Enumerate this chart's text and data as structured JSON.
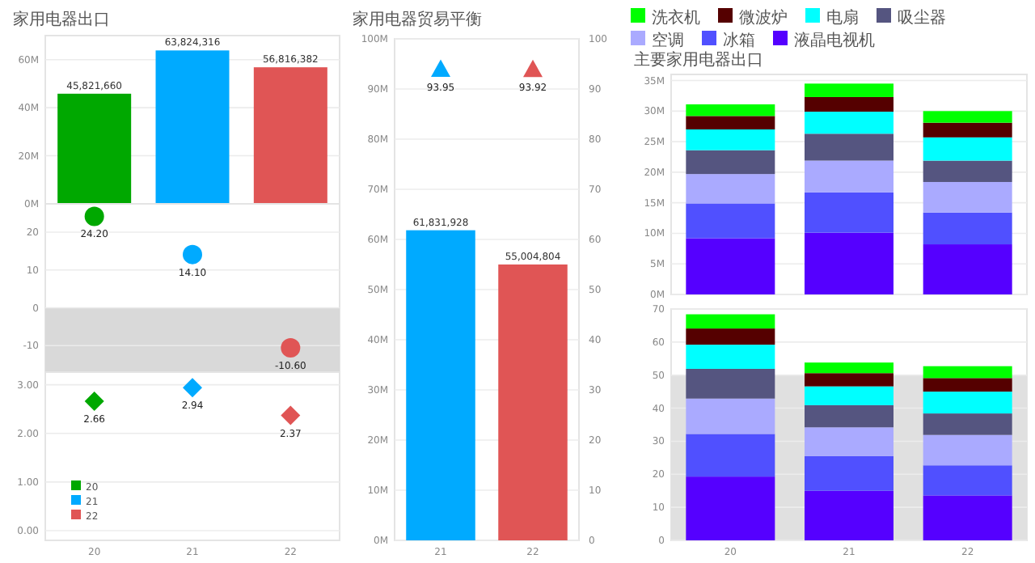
{
  "chart_data": [
    {
      "type": "bar",
      "title": "家用电器出口",
      "categories": [
        "20",
        "21",
        "22"
      ],
      "values": [
        45821660,
        63824316,
        56816382
      ],
      "colors": [
        "#00a800",
        "#00aaff",
        "#e05555"
      ],
      "value_labels": [
        "45,821,660",
        "63,824,316",
        "56,816,382"
      ],
      "ylim": [
        0,
        70000000
      ],
      "yticks": [
        {
          "value": 0,
          "label": "0M"
        },
        {
          "value": 20000000,
          "label": "20M"
        },
        {
          "value": 40000000,
          "label": "40M"
        },
        {
          "value": 60000000,
          "label": "60M"
        }
      ],
      "grid": "y",
      "tick_labels": "y"
    },
    {
      "type": "scatter",
      "categories": [
        "20",
        "21",
        "22"
      ],
      "values": [
        24.2,
        14.1,
        -10.6
      ],
      "colors": [
        "#00a800",
        "#00aaff",
        "#e05555"
      ],
      "value_labels": [
        "24.20",
        "14.10",
        "-10.60"
      ],
      "marker": "circle",
      "ylim": [
        -17,
        27.5
      ],
      "yticks": [
        -10,
        0,
        10,
        20
      ],
      "bands": [
        {
          "axis": "y",
          "from": -17,
          "to": 0,
          "color": "#d9d9d9"
        }
      ],
      "grid": "y",
      "tick_labels": "y"
    },
    {
      "type": "scatter",
      "categories": [
        "20",
        "21",
        "22"
      ],
      "marker": "diamond",
      "series": [
        {
          "name": "20",
          "color": "#00a800",
          "x": [
            "20"
          ],
          "values": [
            2.66
          ],
          "value_labels": [
            "2.66"
          ]
        },
        {
          "name": "21",
          "color": "#00aaff",
          "x": [
            "21"
          ],
          "values": [
            2.94
          ],
          "value_labels": [
            "2.94"
          ]
        },
        {
          "name": "22",
          "color": "#e05555",
          "x": [
            "22"
          ],
          "values": [
            2.37
          ],
          "value_labels": [
            "2.37"
          ]
        }
      ],
      "ylim": [
        -0.2,
        3.26
      ],
      "yticks": [
        {
          "value": 0,
          "label": "0.00"
        },
        {
          "value": 1,
          "label": "1.00"
        },
        {
          "value": 2,
          "label": "2.00"
        },
        {
          "value": 3,
          "label": "3.00"
        }
      ],
      "grid": "y",
      "legend": "bottom left"
    },
    {
      "type": "bar",
      "title": "家用电器贸易平衡",
      "categories": [
        "21",
        "22"
      ],
      "series": [
        {
          "values": [
            61831928,
            55004804
          ],
          "colors": [
            "#00aaff",
            "#e05555"
          ],
          "value_labels": [
            "61,831,928",
            "55,004,804"
          ]
        },
        {
          "type": "scatter",
          "axis": "y2",
          "marker": "triangle",
          "values": [
            93.95,
            93.92
          ],
          "colors": [
            "#00aaff",
            "#e05555"
          ],
          "value_labels": [
            "93.95",
            "93.92"
          ]
        }
      ],
      "ylim": [
        0,
        100000000
      ],
      "yticks": [
        {
          "value": 0,
          "label": "0M"
        },
        {
          "value": 10000000,
          "label": "10M"
        },
        {
          "value": 20000000,
          "label": "20M"
        },
        {
          "value": 30000000,
          "label": "30M"
        },
        {
          "value": 40000000,
          "label": "40M"
        },
        {
          "value": 50000000,
          "label": "50M"
        },
        {
          "value": 60000000,
          "label": "60M"
        },
        {
          "value": 70000000,
          "label": "70M"
        },
        {
          "value": 80000000,
          "label": "80M"
        },
        {
          "value": 90000000,
          "label": "90M"
        },
        {
          "value": 100000000,
          "label": "100M"
        }
      ],
      "y2lim": [
        0,
        100
      ],
      "y2ticks": [
        0,
        10,
        20,
        30,
        40,
        50,
        60,
        70,
        80,
        90,
        100
      ],
      "grid": "y"
    },
    {
      "type": "bar",
      "title": "主要家用电器出口",
      "stacked": true,
      "legend": "top",
      "categories": [
        "20",
        "21",
        "22"
      ],
      "series": [
        {
          "name": "液晶电视机",
          "color": "#5500ff",
          "values": [
            9200000,
            10100000,
            8200000
          ]
        },
        {
          "name": "冰箱",
          "color": "#5050ff",
          "values": [
            5700000,
            6600000,
            5200000
          ]
        },
        {
          "name": "空调",
          "color": "#aaaaff",
          "values": [
            4800000,
            5200000,
            5000000
          ]
        },
        {
          "name": "吸尘器",
          "color": "#555580",
          "values": [
            3900000,
            4400000,
            3500000
          ]
        },
        {
          "name": "电扇",
          "color": "#00ffff",
          "values": [
            3400000,
            3600000,
            3800000
          ]
        },
        {
          "name": "微波炉",
          "color": "#550000",
          "values": [
            2200000,
            2400000,
            2400000
          ]
        },
        {
          "name": "洗衣机",
          "color": "#00ff00",
          "values": [
            1900000,
            2200000,
            1900000
          ]
        }
      ],
      "ylim": [
        0,
        36000000
      ],
      "yticks": [
        {
          "value": 0,
          "label": "0M"
        },
        {
          "value": 5000000,
          "label": "5M"
        },
        {
          "value": 10000000,
          "label": "10M"
        },
        {
          "value": 15000000,
          "label": "15M"
        },
        {
          "value": 20000000,
          "label": "20M"
        },
        {
          "value": 25000000,
          "label": "25M"
        },
        {
          "value": 30000000,
          "label": "30M"
        },
        {
          "value": 35000000,
          "label": "35M"
        }
      ],
      "grid": "y",
      "tick_labels": "y"
    },
    {
      "type": "bar",
      "stacked": true,
      "categories": [
        "20",
        "21",
        "22"
      ],
      "series": [
        {
          "color": "#5500ff",
          "values": [
            19.3,
            15.0,
            13.6
          ]
        },
        {
          "color": "#5050ff",
          "values": [
            12.9,
            10.5,
            9.1
          ]
        },
        {
          "color": "#aaaaff",
          "values": [
            10.7,
            8.7,
            9.2
          ]
        },
        {
          "color": "#555580",
          "values": [
            9.0,
            6.7,
            6.5
          ]
        },
        {
          "color": "#00ffff",
          "values": [
            7.3,
            5.7,
            6.6
          ]
        },
        {
          "color": "#550000",
          "values": [
            4.9,
            4.0,
            4.1
          ]
        },
        {
          "color": "#00ff00",
          "values": [
            4.3,
            3.2,
            3.6
          ]
        }
      ],
      "ylim": [
        0,
        70
      ],
      "yticks": [
        0,
        10,
        20,
        30,
        40,
        50,
        60,
        70
      ],
      "bands": [
        {
          "axis": "y",
          "from": 0,
          "to": 50,
          "color": "#e0e0e0"
        }
      ],
      "grid": "y"
    }
  ]
}
